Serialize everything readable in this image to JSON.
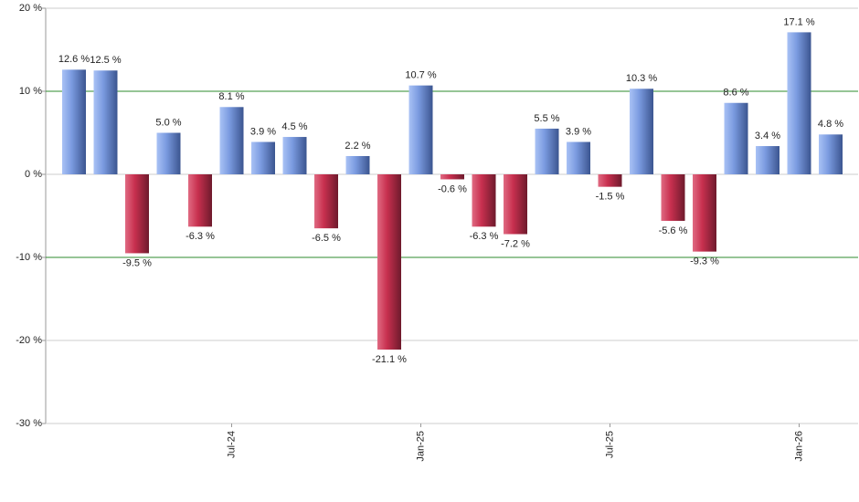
{
  "chart_data": {
    "type": "bar",
    "categories": [
      null,
      null,
      null,
      null,
      null,
      "Jul-24",
      null,
      null,
      null,
      null,
      null,
      "Jan-25",
      null,
      null,
      null,
      null,
      null,
      "Jul-25",
      null,
      null,
      null,
      null,
      null,
      "Jan-26",
      null
    ],
    "values": [
      12.6,
      12.5,
      -9.5,
      5.0,
      -6.3,
      8.1,
      3.9,
      4.5,
      -6.5,
      2.2,
      -21.1,
      10.7,
      -0.6,
      -6.3,
      -7.2,
      5.5,
      3.9,
      -1.5,
      10.3,
      -5.6,
      -9.3,
      8.6,
      3.4,
      17.1,
      4.8
    ],
    "value_labels": [
      "12.6 %",
      "12.5 %",
      "-9.5 %",
      "5.0 %",
      "-6.3 %",
      "8.1 %",
      "3.9 %",
      "4.5 %",
      "-6.5 %",
      "2.2 %",
      "-21.1 %",
      "10.7 %",
      "-0.6 %",
      "-6.3 %",
      "-7.2 %",
      "5.5 %",
      "3.9 %",
      "-1.5 %",
      "10.3 %",
      "-5.6 %",
      "-9.3 %",
      "8.6 %",
      "3.4 %",
      "17.1 %",
      "4.8 %"
    ],
    "positive_color": "#7b9be0",
    "negative_color": "#c8304f",
    "ylim": [
      -30,
      20
    ],
    "yticks": [
      {
        "value": -30,
        "label": "-30 %"
      },
      {
        "value": -20,
        "label": "-20 %"
      },
      {
        "value": -10,
        "label": "-10 %"
      },
      {
        "value": 0,
        "label": "0 %"
      },
      {
        "value": 10,
        "label": "10 %"
      },
      {
        "value": 20,
        "label": "20 %"
      }
    ],
    "grid": true,
    "reference_lines": [
      10,
      -10
    ],
    "reference_color": "#2e8b2e"
  }
}
